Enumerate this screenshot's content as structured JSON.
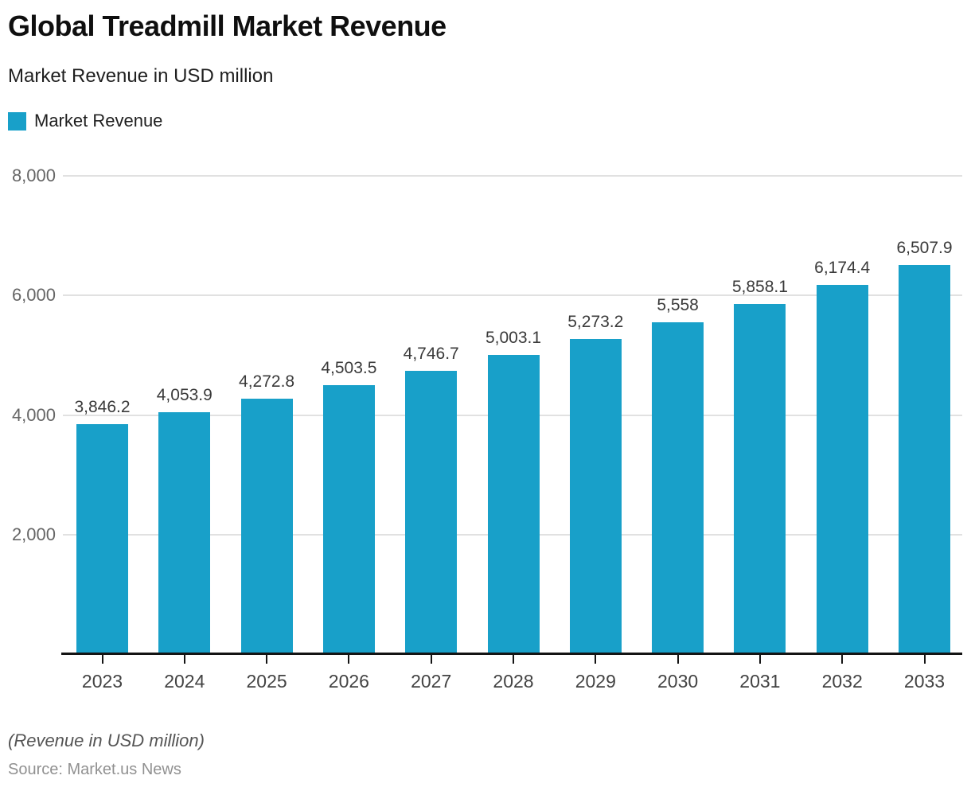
{
  "header": {
    "title": "Global Treadmill Market Revenue",
    "subtitle": "Market Revenue in USD million"
  },
  "legend": {
    "label": "Market Revenue",
    "swatch_color": "#18A0C9"
  },
  "chart_data": {
    "type": "bar",
    "title": "Global Treadmill Market Revenue",
    "subtitle": "Market Revenue in USD million",
    "categories": [
      "2023",
      "2024",
      "2025",
      "2026",
      "2027",
      "2028",
      "2029",
      "2030",
      "2031",
      "2032",
      "2033"
    ],
    "series": [
      {
        "name": "Market Revenue",
        "values": [
          3846.2,
          4053.9,
          4272.8,
          4503.5,
          4746.7,
          5003.1,
          5273.2,
          5558,
          5858.1,
          6174.4,
          6507.9
        ]
      }
    ],
    "value_labels": [
      "3,846.2",
      "4,053.9",
      "4,272.8",
      "4,503.5",
      "4,746.7",
      "5,003.1",
      "5,273.2",
      "5,558",
      "5,858.1",
      "6,174.4",
      "6,507.9"
    ],
    "xlabel": "",
    "ylabel": "",
    "ylim": [
      0,
      8000
    ],
    "yticks": [
      {
        "value": 2000,
        "label": "2,000"
      },
      {
        "value": 4000,
        "label": "4,000"
      },
      {
        "value": 6000,
        "label": "6,000"
      },
      {
        "value": 8000,
        "label": "8,000"
      }
    ],
    "grid": true,
    "legend_position": "top-left",
    "bar_color": "#18A0C9",
    "gridline_color": "#e1e1e1",
    "axis_color": "#141414"
  },
  "footer": {
    "note": "(Revenue in USD million)",
    "source": "Source: Market.us News"
  }
}
